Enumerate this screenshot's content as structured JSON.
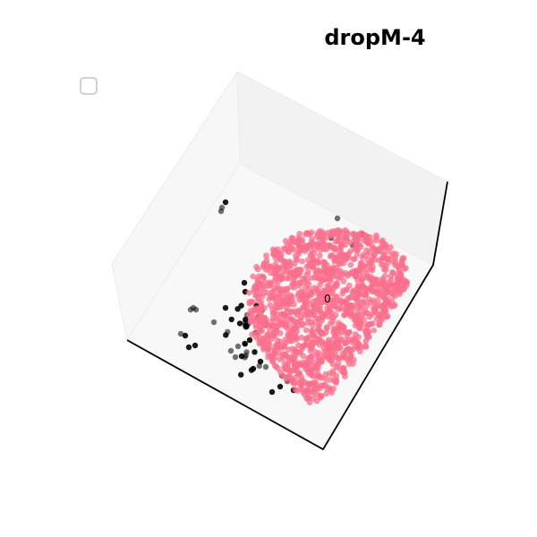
{
  "chart_data": {
    "type": "scatter",
    "title": "dropM-4",
    "legend_entries": [],
    "annotations": [
      "0"
    ],
    "projection": "3d",
    "colors": {
      "cluster_main": "#fb6f8c",
      "outliers": "#000000",
      "pane": "#f2f2f2",
      "axis": "#000000"
    },
    "series": [
      {
        "name": "",
        "color": "#fb6f8c",
        "count": 1400
      },
      {
        "name": "",
        "color": "#000000",
        "count": 60
      }
    ]
  }
}
